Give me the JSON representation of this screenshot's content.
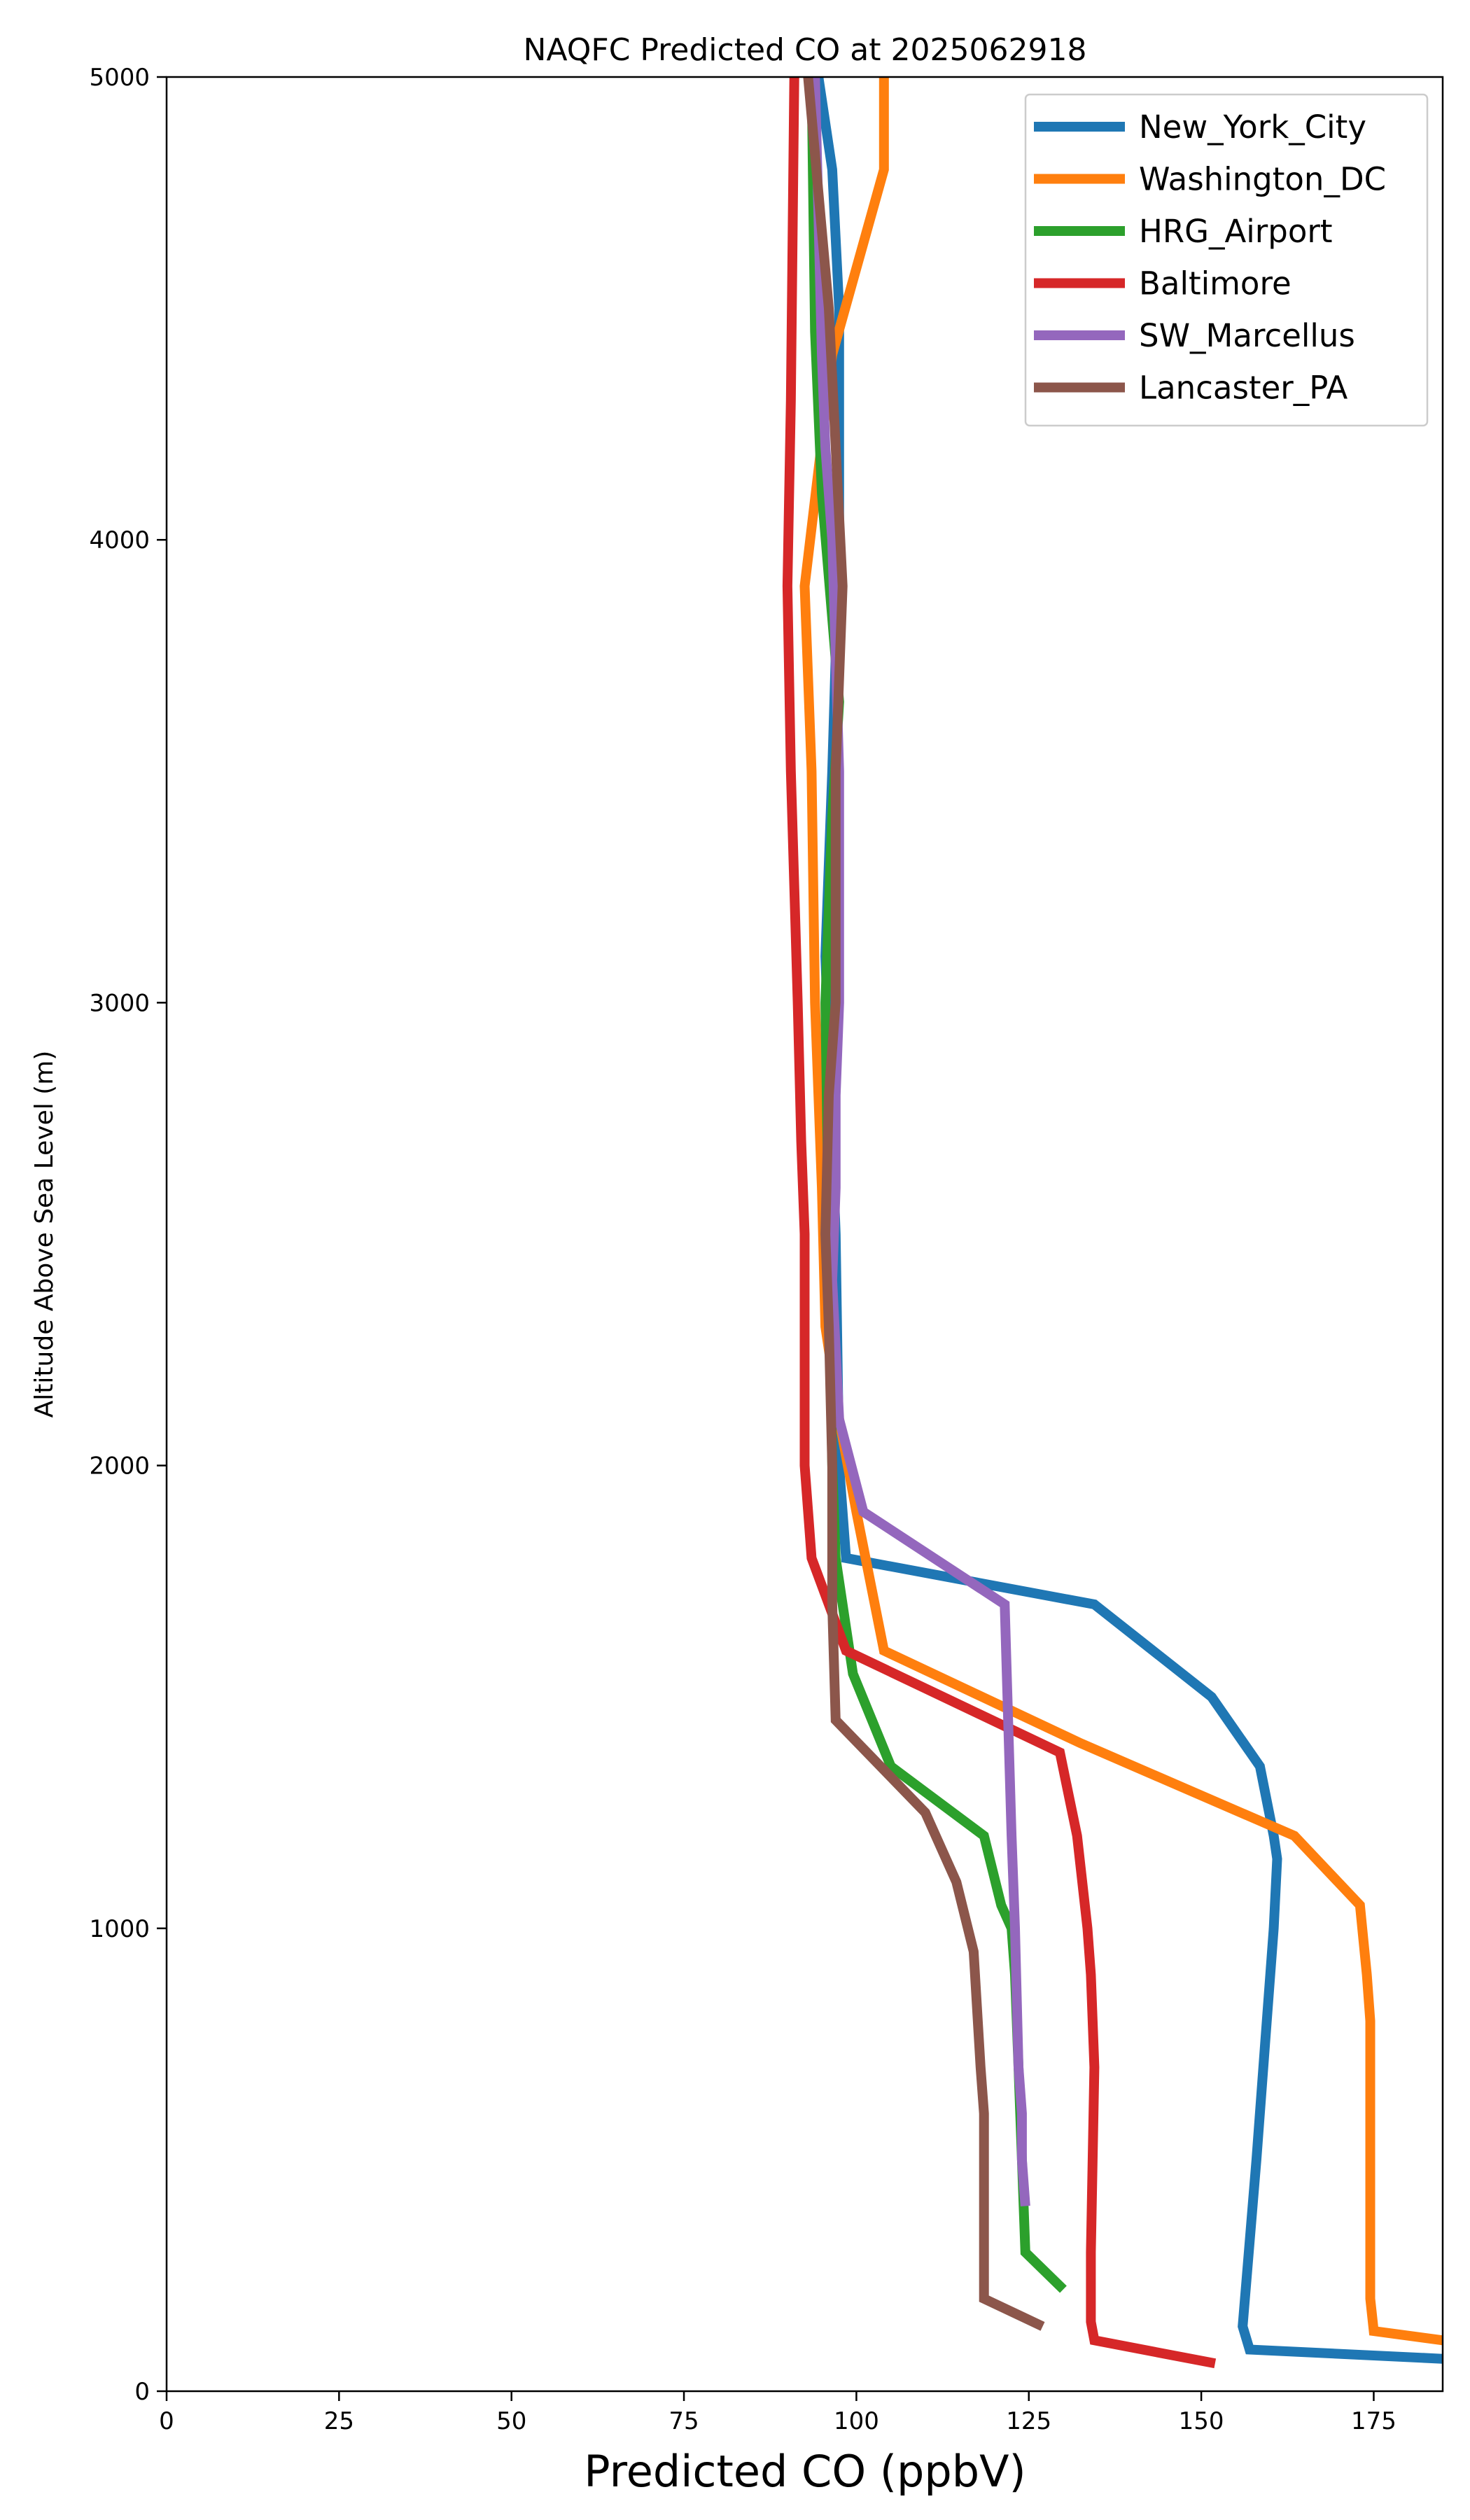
{
  "chart_data": {
    "type": "line",
    "title": "NAQFC Predicted CO at 2025062918",
    "xlabel": "Predicted CO (ppbV)",
    "ylabel": "Altitude Above Sea Level (m)",
    "xlim": [
      0,
      185
    ],
    "ylim": [
      0,
      5000
    ],
    "xticks": [
      0,
      25,
      50,
      75,
      100,
      125,
      150,
      175
    ],
    "yticks": [
      0,
      1000,
      2000,
      3000,
      4000,
      5000
    ],
    "grid": false,
    "legend_position": "top-right",
    "series": [
      {
        "name": "New_York_City",
        "color": "#1f77b4",
        "x": [
          185,
          157,
          156,
          158,
          159.5,
          160.5,
          161,
          160.5,
          158.5,
          151.5,
          134.5,
          98.5,
          97.5,
          97,
          96.5,
          96,
          95.5,
          96.5,
          97.5,
          97.5,
          96.5,
          94.5
        ],
        "y": [
          70,
          90,
          140,
          500,
          800,
          1000,
          1150,
          1200,
          1350,
          1500,
          1700,
          1800,
          2000,
          2500,
          2700,
          2900,
          3100,
          3500,
          4000,
          4500,
          4800,
          5000
        ]
      },
      {
        "name": "Washington_DC",
        "color": "#ff7f0e",
        "x": [
          185,
          175,
          174.5,
          174.5,
          174.5,
          174,
          173,
          163.5,
          132.5,
          104,
          100,
          97.5,
          95.5,
          95,
          94.5,
          94,
          93.5,
          92.5,
          96.5,
          104,
          104
        ],
        "y": [
          110,
          130,
          200,
          700,
          800,
          900,
          1050,
          1200,
          1400,
          1600,
          1900,
          2100,
          2300,
          2600,
          2800,
          3000,
          3500,
          3900,
          4400,
          4800,
          5000
        ]
      },
      {
        "name": "HRG_Airport",
        "color": "#2ca02c",
        "x": [
          130,
          124.5,
          124,
          123.5,
          123,
          122.5,
          121,
          118.5,
          105,
          99.5,
          97,
          96.5,
          96,
          95.5,
          96,
          96.5,
          97.5,
          95,
          94,
          93.5
        ],
        "y": [
          220,
          300,
          500,
          700,
          900,
          1000,
          1050,
          1200,
          1350,
          1550,
          1800,
          2000,
          2500,
          3000,
          3200,
          3400,
          3650,
          4100,
          4450,
          5000
        ]
      },
      {
        "name": "Baltimore",
        "color": "#d62728",
        "x": [
          152,
          134.5,
          134,
          134,
          134.5,
          134,
          133.5,
          132,
          129.5,
          98.5,
          93.5,
          92.5,
          92.5,
          92,
          91.5,
          90.5,
          90,
          90.5,
          91
        ],
        "y": [
          60,
          110,
          150,
          300,
          700,
          900,
          1000,
          1200,
          1380,
          1600,
          1800,
          2000,
          2500,
          2700,
          3000,
          3500,
          3900,
          4300,
          5000
        ]
      },
      {
        "name": "SW_Marcellus",
        "color": "#9467bd",
        "x": [
          124.5,
          124,
          124,
          123.5,
          123,
          122.5,
          121.5,
          101,
          97.5,
          96.5,
          97,
          97,
          97.5,
          97.5,
          96.5,
          95.5,
          95,
          94.5,
          94
        ],
        "y": [
          400,
          500,
          600,
          700,
          1000,
          1200,
          1700,
          1900,
          2100,
          2400,
          2600,
          2800,
          3000,
          3500,
          4000,
          4200,
          4400,
          4700,
          5000
        ]
      },
      {
        "name": "Lancaster_PA",
        "color": "#8c564b",
        "x": [
          127,
          118.5,
          118.5,
          118.5,
          118.5,
          118,
          117,
          114.5,
          110,
          97,
          96.5,
          96.5,
          96,
          95.5,
          96,
          97,
          97,
          98,
          96,
          93
        ],
        "y": [
          140,
          200,
          300,
          500,
          600,
          700,
          950,
          1100,
          1250,
          1450,
          1700,
          2000,
          2300,
          2500,
          2800,
          3000,
          3500,
          3900,
          4500,
          5000
        ]
      }
    ]
  }
}
